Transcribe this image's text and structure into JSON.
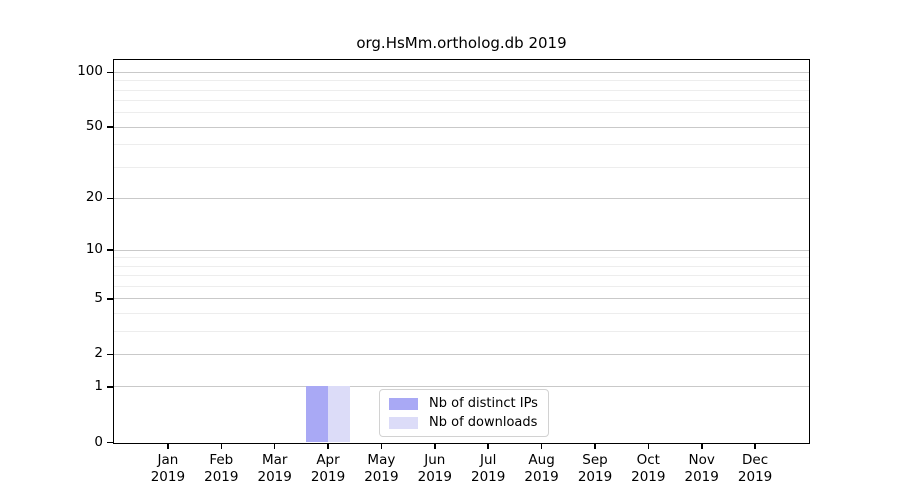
{
  "chart_data": {
    "type": "bar",
    "title": "org.HsMm.ortholog.db 2019",
    "x_categories": [
      {
        "month": "Jan",
        "year": "2019"
      },
      {
        "month": "Feb",
        "year": "2019"
      },
      {
        "month": "Mar",
        "year": "2019"
      },
      {
        "month": "Apr",
        "year": "2019"
      },
      {
        "month": "May",
        "year": "2019"
      },
      {
        "month": "Jun",
        "year": "2019"
      },
      {
        "month": "Jul",
        "year": "2019"
      },
      {
        "month": "Aug",
        "year": "2019"
      },
      {
        "month": "Sep",
        "year": "2019"
      },
      {
        "month": "Oct",
        "year": "2019"
      },
      {
        "month": "Nov",
        "year": "2019"
      },
      {
        "month": "Dec",
        "year": "2019"
      }
    ],
    "series": [
      {
        "name": "Nb of distinct IPs",
        "color": "#a9a9f5",
        "values": [
          0,
          0,
          0,
          1,
          0,
          0,
          0,
          0,
          0,
          0,
          0,
          0
        ]
      },
      {
        "name": "Nb of downloads",
        "color": "#dcdcf8",
        "values": [
          0,
          0,
          0,
          1,
          0,
          0,
          0,
          0,
          0,
          0,
          0,
          0
        ]
      }
    ],
    "y_scale": "log10(1+x)",
    "y_major_ticks": [
      0,
      1,
      2,
      5,
      10,
      20,
      50,
      100
    ],
    "y_minor_gridlines": [
      3,
      4,
      6,
      7,
      8,
      9,
      30,
      40,
      60,
      70,
      80,
      90
    ],
    "y_max": 116,
    "grid": "horizontal, major and minor, on",
    "legend": {
      "position": "inside lower center-left",
      "entries": [
        "Nb of distinct IPs",
        "Nb of downloads"
      ]
    },
    "colors": {
      "grid_major": "#c9c9c9",
      "grid_minor": "#ededed",
      "spine": "#000000",
      "text": "#000000",
      "background": "#ffffff"
    }
  }
}
